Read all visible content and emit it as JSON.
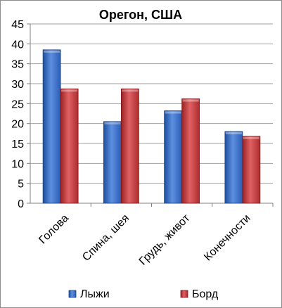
{
  "chart_data": {
    "type": "bar",
    "title": "Орегон, США",
    "xlabel": "",
    "ylabel": "",
    "categories": [
      "Голова",
      "Спина, шея",
      "Грудь, живот",
      "Конечности"
    ],
    "series": [
      {
        "name": "Лыжи",
        "values": [
          38.5,
          20.5,
          23.2,
          18.0
        ],
        "color": "#3a6fc4"
      },
      {
        "name": "Борд",
        "values": [
          28.7,
          28.7,
          26.2,
          16.8
        ],
        "color": "#c0393b"
      }
    ],
    "ylim": [
      0,
      45
    ],
    "yticks": [
      0,
      5,
      10,
      15,
      20,
      25,
      30,
      35,
      40,
      45
    ],
    "grid": true,
    "legend": "bottom"
  }
}
